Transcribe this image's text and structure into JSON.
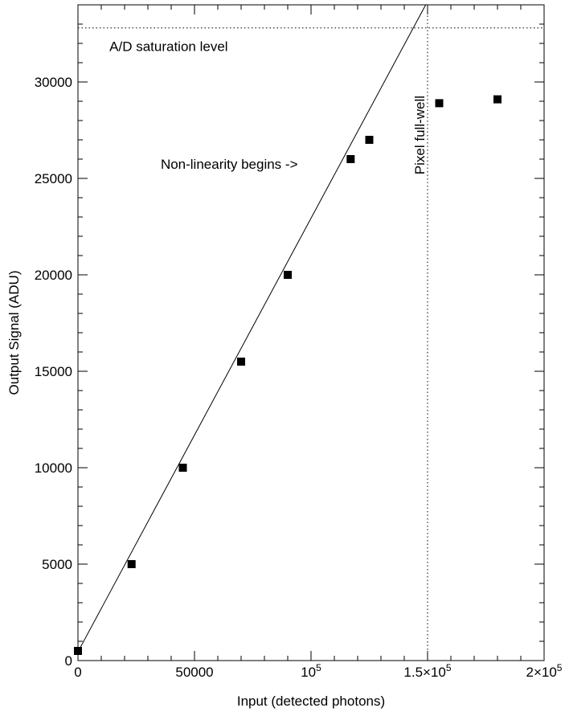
{
  "chart_data": {
    "type": "scatter",
    "xlabel": "Input (detected photons)",
    "ylabel": "Output Signal (ADU)",
    "xlim": [
      0,
      200000
    ],
    "ylim": [
      0,
      34000
    ],
    "x_ticks": [
      {
        "value": 0,
        "label": "0",
        "sup": ""
      },
      {
        "value": 50000,
        "label": "50000",
        "sup": ""
      },
      {
        "value": 100000,
        "label": "10",
        "sup": "5"
      },
      {
        "value": 150000,
        "label": "1.5×10",
        "sup": "5"
      },
      {
        "value": 200000,
        "label": "2×10",
        "sup": "5"
      }
    ],
    "y_ticks": [
      {
        "value": 0,
        "label": "0"
      },
      {
        "value": 5000,
        "label": "5000"
      },
      {
        "value": 10000,
        "label": "10000"
      },
      {
        "value": 15000,
        "label": "15000"
      },
      {
        "value": 20000,
        "label": "20000"
      },
      {
        "value": 25000,
        "label": "25000"
      },
      {
        "value": 30000,
        "label": "30000"
      }
    ],
    "x_minor_step": 10000,
    "y_minor_step": 1000,
    "series": [
      {
        "points": [
          {
            "x": 0,
            "y": 500
          },
          {
            "x": 23000,
            "y": 5000
          },
          {
            "x": 45000,
            "y": 10000
          },
          {
            "x": 70000,
            "y": 15500
          },
          {
            "x": 90000,
            "y": 20000
          },
          {
            "x": 117000,
            "y": 26000
          },
          {
            "x": 125000,
            "y": 27000
          },
          {
            "x": 155000,
            "y": 28900
          },
          {
            "x": 180000,
            "y": 29100
          }
        ]
      }
    ],
    "fit_line": {
      "x": [
        0,
        149200
      ],
      "y": [
        450,
        34000
      ]
    },
    "saturation_level": 32800,
    "full_well": 150000,
    "annotations": {
      "saturation": {
        "text": "A/D saturation level",
        "x": 13500,
        "y": 31600
      },
      "nonlinearity": {
        "text": "Non-linearity begins ->",
        "x": 35500,
        "y": 25500
      },
      "full_well": {
        "text": "Pixel full-well",
        "x": 148700,
        "y": 25200
      }
    }
  }
}
